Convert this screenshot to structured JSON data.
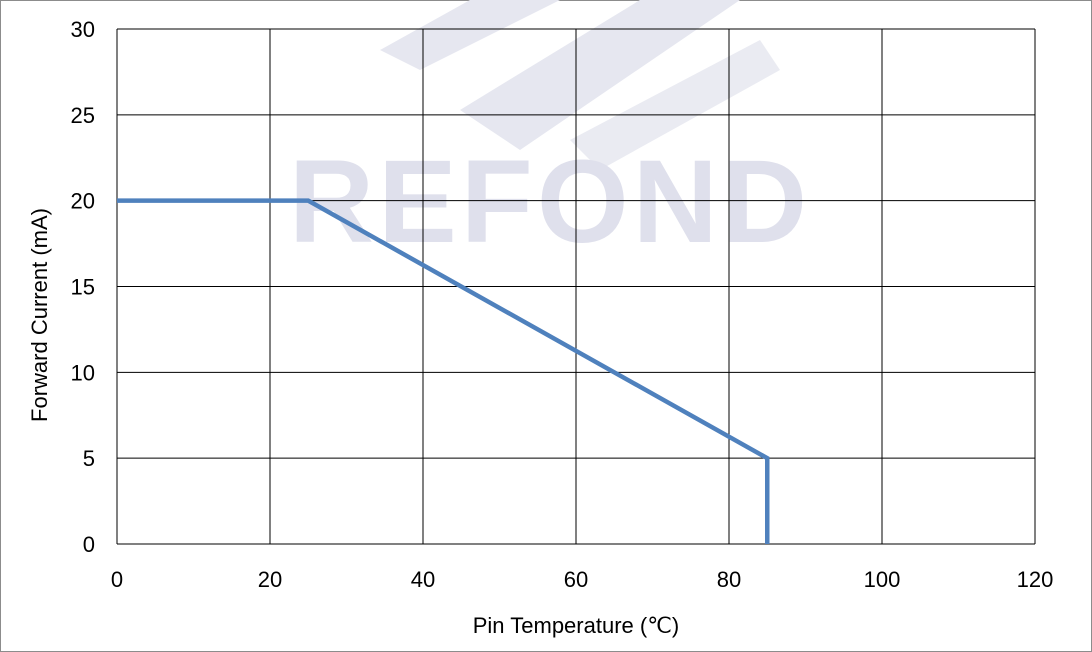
{
  "colors": {
    "series": "#4f81bd",
    "grid": "#000000",
    "frame": "#8c8c8c",
    "watermark": "#dfe0ec"
  },
  "watermark": {
    "text": "REFOND"
  },
  "chart_data": {
    "type": "line",
    "title": "",
    "xlabel": "Pin Temperature (℃)",
    "ylabel": "Forward Current (mA)",
    "xlim": [
      0,
      120
    ],
    "ylim": [
      0,
      30
    ],
    "xticks": [
      0,
      20,
      40,
      60,
      80,
      100,
      120
    ],
    "yticks": [
      0,
      5,
      10,
      15,
      20,
      25,
      30
    ],
    "grid": true,
    "legend": "none",
    "series": [
      {
        "x": [
          0,
          25,
          85,
          85
        ],
        "y": [
          20,
          20,
          5,
          0
        ]
      }
    ]
  }
}
